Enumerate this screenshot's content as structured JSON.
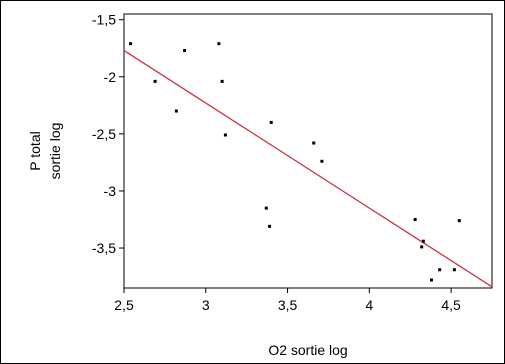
{
  "chart_data": {
    "type": "scatter",
    "title": "",
    "xlabel": "O2 sortie log",
    "ylabel_lines": [
      "P total",
      "sortie log"
    ],
    "xlim": [
      2.5,
      4.75
    ],
    "ylim": [
      -3.85,
      -1.45
    ],
    "x_ticks": [
      2.5,
      3,
      3.5,
      4,
      4.5
    ],
    "x_tick_labels": [
      "2,5",
      "3",
      "3,5",
      "4",
      "4,5"
    ],
    "y_ticks": [
      -1.5,
      -2,
      -2.5,
      -3,
      -3.5
    ],
    "y_tick_labels": [
      "-1,5",
      "-2",
      "-2,5",
      "-3",
      "-3,5"
    ],
    "grid": false,
    "series": [
      {
        "points": [
          {
            "x": 2.54,
            "y": -1.71
          },
          {
            "x": 2.69,
            "y": -2.04
          },
          {
            "x": 2.82,
            "y": -2.3
          },
          {
            "x": 2.87,
            "y": -1.77
          },
          {
            "x": 3.08,
            "y": -1.71
          },
          {
            "x": 3.1,
            "y": -2.04
          },
          {
            "x": 3.12,
            "y": -2.51
          },
          {
            "x": 3.37,
            "y": -3.15
          },
          {
            "x": 3.39,
            "y": -3.31
          },
          {
            "x": 3.4,
            "y": -2.4
          },
          {
            "x": 3.66,
            "y": -2.58
          },
          {
            "x": 3.71,
            "y": -2.74
          },
          {
            "x": 4.28,
            "y": -3.25
          },
          {
            "x": 4.32,
            "y": -3.49
          },
          {
            "x": 4.33,
            "y": -3.44
          },
          {
            "x": 4.38,
            "y": -3.78
          },
          {
            "x": 4.43,
            "y": -3.69
          },
          {
            "x": 4.52,
            "y": -3.69
          },
          {
            "x": 4.55,
            "y": -3.26
          }
        ],
        "color": "#000000"
      }
    ],
    "fit_line": {
      "x": [
        2.5,
        4.75
      ],
      "y": [
        -1.77,
        -3.84
      ],
      "color": "#cc3344"
    }
  }
}
